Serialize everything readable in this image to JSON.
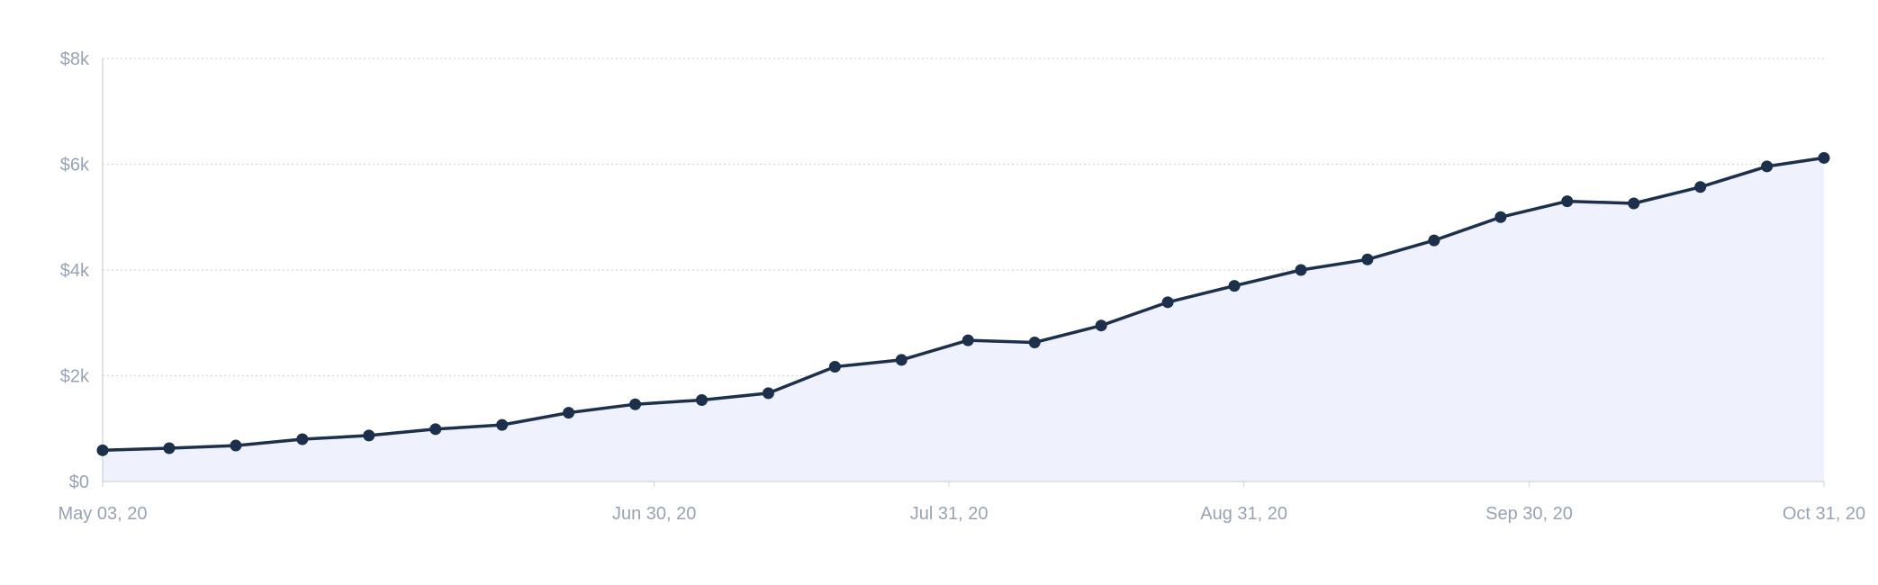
{
  "chart_data": {
    "type": "area",
    "x": [
      "2020-05-03",
      "2020-05-10",
      "2020-05-17",
      "2020-05-24",
      "2020-05-31",
      "2020-06-07",
      "2020-06-14",
      "2020-06-21",
      "2020-06-28",
      "2020-07-05",
      "2020-07-12",
      "2020-07-19",
      "2020-07-26",
      "2020-08-02",
      "2020-08-09",
      "2020-08-16",
      "2020-08-23",
      "2020-08-30",
      "2020-09-06",
      "2020-09-13",
      "2020-09-20",
      "2020-09-27",
      "2020-10-04",
      "2020-10-11",
      "2020-10-18",
      "2020-10-25",
      "2020-10-31"
    ],
    "series": [
      {
        "values": [
          590,
          630,
          680,
          800,
          870,
          990,
          1070,
          1300,
          1460,
          1540,
          1670,
          2170,
          2300,
          2670,
          2630,
          2950,
          3390,
          3700,
          4000,
          4200,
          4560,
          5000,
          5300,
          5260,
          5570,
          5960,
          6120
        ]
      }
    ],
    "x_ticks": [
      {
        "date": "2020-05-03",
        "label": "May 03, 20"
      },
      {
        "date": "2020-06-30",
        "label": "Jun 30, 20"
      },
      {
        "date": "2020-07-31",
        "label": "Jul 31, 20"
      },
      {
        "date": "2020-08-31",
        "label": "Aug 31, 20"
      },
      {
        "date": "2020-09-30",
        "label": "Sep 30, 20"
      },
      {
        "date": "2020-10-31",
        "label": "Oct 31, 20"
      }
    ],
    "y_ticks": [
      {
        "value": 0,
        "label": "$0"
      },
      {
        "value": 2000,
        "label": "$2k"
      },
      {
        "value": 4000,
        "label": "$4k"
      },
      {
        "value": 6000,
        "label": "$6k"
      },
      {
        "value": 8000,
        "label": "$8k"
      }
    ],
    "ylim": [
      0,
      8000
    ],
    "xlim": [
      "2020-05-03",
      "2020-10-31"
    ],
    "grid": true,
    "title": "",
    "xlabel": "",
    "ylabel": "",
    "colors": {
      "line": "#1c2f4b",
      "marker": "#1c2f4b",
      "area_fill": "#eff2fd",
      "tick_text": "#97a3b4",
      "grid": "#d4d8de"
    }
  }
}
